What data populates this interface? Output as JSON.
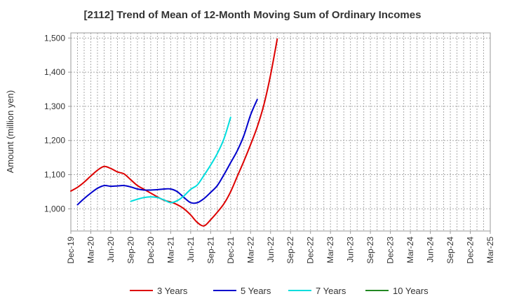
{
  "chart_data": {
    "type": "line",
    "title": "[2112]  Trend of Mean of 12-Month Moving Sum of Ordinary Incomes",
    "ylabel": "Amount (million yen)",
    "xlabel": "",
    "ylim": [
      935,
      1515
    ],
    "yticks": [
      1000,
      1100,
      1200,
      1300,
      1400,
      1500
    ],
    "ytick_labels": [
      "1,000",
      "1,100",
      "1,200",
      "1,300",
      "1,400",
      "1,500"
    ],
    "x_tick_labels": [
      "Dec-19",
      "Mar-20",
      "Jun-20",
      "Sep-20",
      "Dec-20",
      "Mar-21",
      "Jun-21",
      "Sep-21",
      "Dec-21",
      "Mar-22",
      "Jun-22",
      "Sep-22",
      "Dec-22",
      "Mar-23",
      "Jun-23",
      "Sep-23",
      "Dec-23",
      "Mar-24",
      "Jun-24",
      "Sep-24",
      "Dec-24",
      "Mar-25"
    ],
    "grid": true,
    "series": [
      {
        "name": "3 Years",
        "color": "#dd0000",
        "start_index": 0,
        "values": [
          1052,
          1063,
          1078,
          1096,
          1113,
          1124,
          1118,
          1108,
          1102,
          1085,
          1068,
          1057,
          1046,
          1035,
          1025,
          1020,
          1012,
          1000,
          982,
          960,
          950,
          968,
          990,
          1015,
          1050,
          1095,
          1140,
          1188,
          1240,
          1305,
          1392,
          1497
        ]
      },
      {
        "name": "5 Years",
        "color": "#0000cc",
        "start_index": 1,
        "values": [
          1012,
          1030,
          1046,
          1060,
          1068,
          1066,
          1067,
          1068,
          1064,
          1058,
          1055,
          1055,
          1056,
          1058,
          1058,
          1050,
          1033,
          1018,
          1018,
          1030,
          1048,
          1068,
          1100,
          1135,
          1170,
          1215,
          1275,
          1320
        ]
      },
      {
        "name": "7 Years",
        "color": "#00dddd",
        "start_index": 9,
        "values": [
          1022,
          1028,
          1033,
          1035,
          1033,
          1026,
          1018,
          1024,
          1038,
          1057,
          1070,
          1098,
          1128,
          1162,
          1205,
          1268
        ]
      },
      {
        "name": "10 Years",
        "color": "#228822",
        "start_index": 0,
        "values": []
      }
    ]
  }
}
